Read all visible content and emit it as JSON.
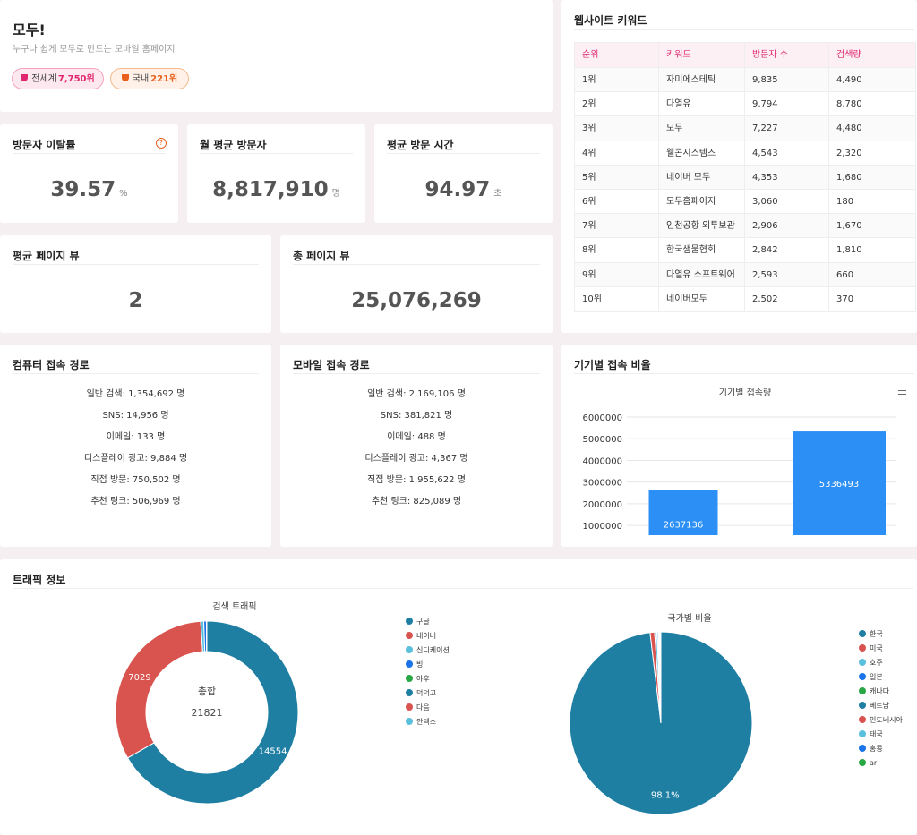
{
  "header": {
    "title": "모두!",
    "subtitle": "누구나 쉽게 모두로 만드는 모바일 홈페이지",
    "badges": [
      {
        "label": "전세계",
        "rank": "7,750위"
      },
      {
        "label": "국내",
        "rank": "221위"
      }
    ]
  },
  "stats": [
    {
      "label": "방문자 이탈률",
      "value": "39.57",
      "unit": "%"
    },
    {
      "label": "월 평균 방문자",
      "value": "8,817,910",
      "unit": "명"
    },
    {
      "label": "평균 방문 시간",
      "value": "94.97",
      "unit": "초"
    },
    {
      "label": "평균 페이지 뷰",
      "value": "2"
    },
    {
      "label": "총 페이지 뷰",
      "value": "25,076,269"
    }
  ],
  "keywords": {
    "title": "웹사이트 키워드",
    "columns": [
      "순위",
      "키워드",
      "방문자 수",
      "검색량"
    ],
    "rows": [
      [
        "1위",
        "자미에스테틱",
        "9,835",
        "4,490"
      ],
      [
        "2위",
        "다열유",
        "9,794",
        "8,780"
      ],
      [
        "3위",
        "모두",
        "7,227",
        "4,480"
      ],
      [
        "4위",
        "웰콘시스템즈",
        "4,543",
        "2,320"
      ],
      [
        "5위",
        "네이버 모두",
        "4,353",
        "1,680"
      ],
      [
        "6위",
        "모두홈페이지",
        "3,060",
        "180"
      ],
      [
        "7위",
        "인천공항 외투보관",
        "2,906",
        "1,670"
      ],
      [
        "8위",
        "한국샘물협회",
        "2,842",
        "1,810"
      ],
      [
        "9위",
        "다열유 소프트웨어",
        "2,593",
        "660"
      ],
      [
        "10위",
        "네이버모두",
        "2,502",
        "370"
      ]
    ]
  },
  "routes": [
    {
      "title": "컴퓨터 접속 경로",
      "lines": [
        "일반 검색: 1,354,692 명",
        "SNS: 14,956 명",
        "이메일: 133 명",
        "디스플레이 광고: 9,884 명",
        "직접 방문: 750,502 명",
        "추천 링크: 506,969 명"
      ]
    },
    {
      "title": "모바일 접속 경로",
      "lines": [
        "일반 검색: 2,169,106 명",
        "SNS: 381,821 명",
        "이메일: 488 명",
        "디스플레이 광고: 4,367 명",
        "직접 방문: 1,955,622 명",
        "추천 링크: 825,089 명"
      ]
    }
  ],
  "device_title": "기기별 접속 비율",
  "traffic_title": "트래픽 정보",
  "chart_data": [
    {
      "type": "bar",
      "title": "기기별 접속량",
      "categories": [
        null,
        null
      ],
      "values": [
        2637136,
        5336493
      ],
      "color": "#2b8ff5",
      "ylim": [
        550000,
        6000000
      ],
      "yticks": [
        1000000,
        2000000,
        3000000,
        4000000,
        5000000,
        6000000
      ],
      "grid": true
    },
    {
      "type": "donut",
      "title": "검색 트래픽",
      "center_label": "총합",
      "total": 21821,
      "categories": [
        "구글",
        "네이버",
        "신디케이션",
        "빙",
        "야후",
        "덕덕고",
        "다음",
        "얀덱스"
      ],
      "values": [
        14554,
        7029,
        120,
        100,
        0,
        0,
        10,
        8
      ],
      "colors": [
        "#1f7fa3",
        "#d9534f",
        "#5bc0de",
        "#1a73e8",
        "#28a745",
        "#1f7fa3",
        "#d9534f",
        "#5bc0de"
      ],
      "labeled": [
        true,
        true,
        false,
        false,
        false,
        false,
        false,
        false
      ]
    },
    {
      "type": "pie",
      "title": "국가별 비율",
      "categories": [
        "한국",
        "미국",
        "호주",
        "일본",
        "캐나다",
        "베트남",
        "인도네시아",
        "태국",
        "홍콩",
        "ar"
      ],
      "values": [
        98.1,
        0.8,
        0.4,
        0.2,
        0.1,
        0.1,
        0.1,
        0.1,
        0.05,
        0.05
      ],
      "value_labels": [
        "98.1%",
        null,
        null,
        null,
        null,
        null,
        null,
        null,
        null,
        null
      ],
      "colors": [
        "#1f7fa3",
        "#d9534f",
        "#5bc0de",
        "#1a73e8",
        "#28a745",
        "#1f7fa3",
        "#d9534f",
        "#5bc0de",
        "#1a73e8",
        "#28a745"
      ]
    }
  ]
}
